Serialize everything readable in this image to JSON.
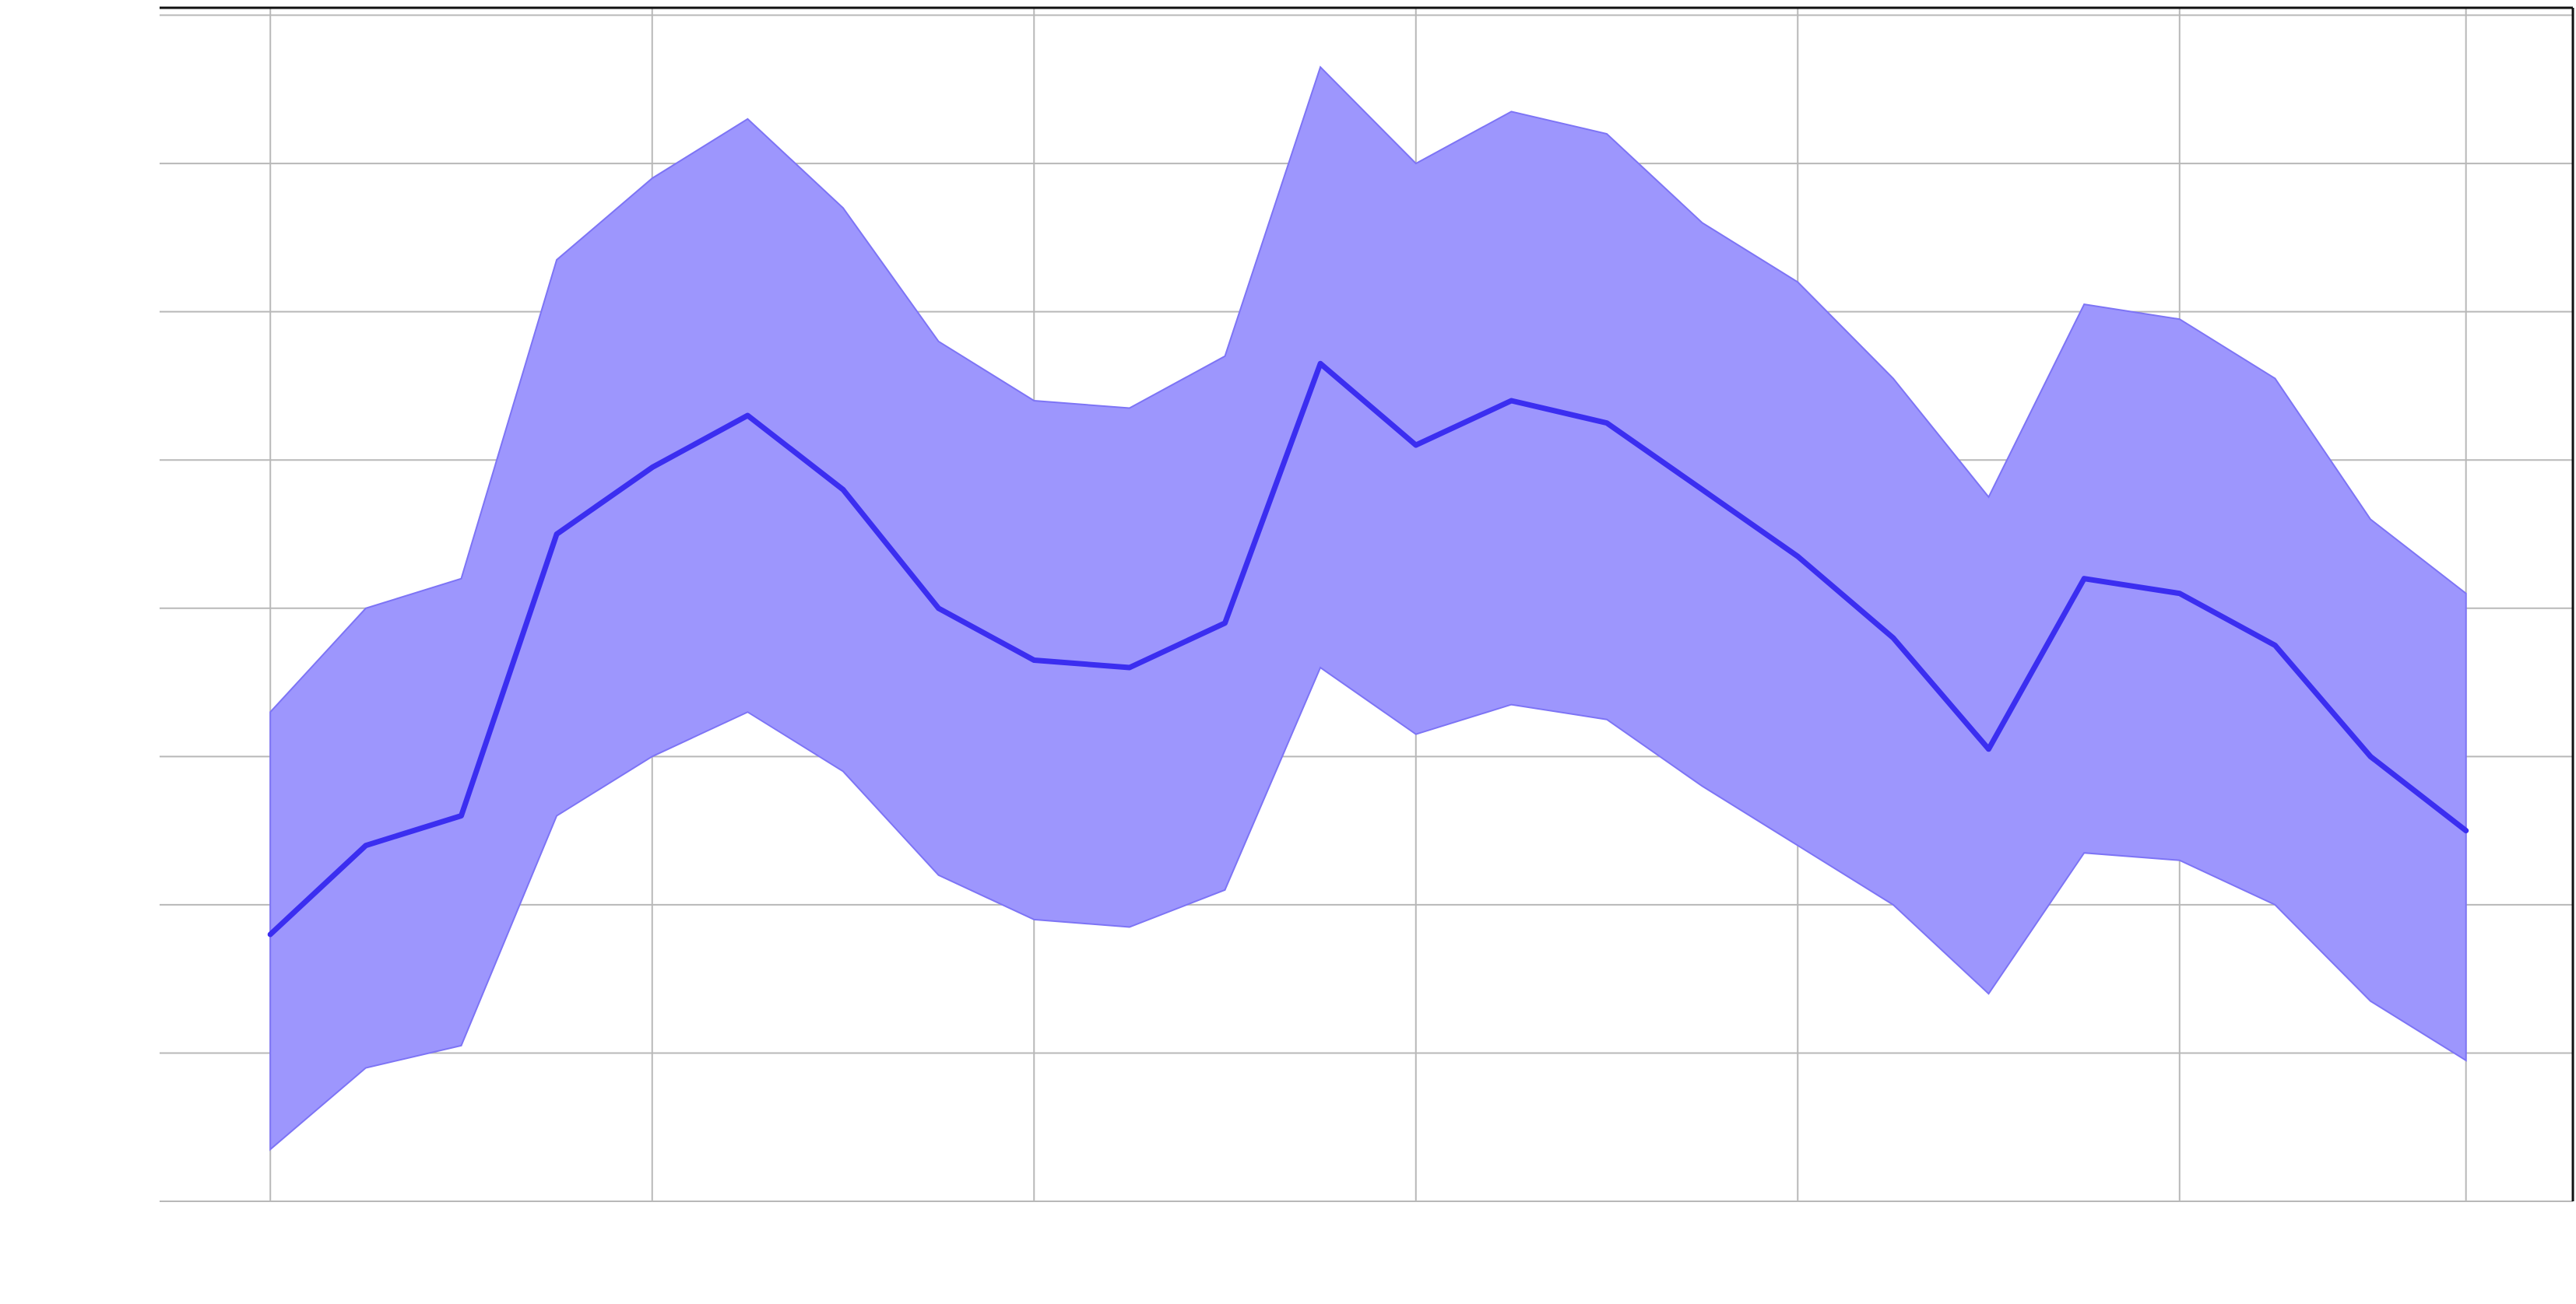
{
  "colors": {
    "band_fill": "#9d96fd",
    "band_edge": "#7d74f5",
    "line": "#3b2ef0",
    "grid": "#b8b8b8",
    "frame": "#111111",
    "background": "#ffffff"
  },
  "chart_data": {
    "type": "area",
    "title": "",
    "xlabel": "",
    "ylabel": "",
    "x": [
      0,
      0.25,
      0.5,
      0.75,
      1,
      1.25,
      1.5,
      1.75,
      2,
      2.25,
      2.5,
      2.75,
      3,
      3.25,
      3.5,
      3.75,
      4,
      4.25,
      4.5,
      4.75,
      5,
      5.25,
      5.5,
      5.75
    ],
    "xlim": [
      -0.29,
      6.03
    ],
    "ylim": [
      0,
      8.05
    ],
    "x_gridlines": [
      0,
      1,
      2,
      3,
      4,
      5,
      5.75
    ],
    "y_gridlines": [
      0,
      1,
      2,
      3,
      4,
      5,
      6,
      7,
      8
    ],
    "grid": true,
    "legend": "none",
    "series": [
      {
        "role": "mean",
        "values": [
          1.8,
          2.4,
          2.6,
          4.5,
          4.95,
          5.3,
          4.8,
          4.0,
          3.65,
          3.6,
          3.9,
          5.65,
          5.1,
          5.4,
          5.25,
          4.8,
          4.35,
          3.8,
          3.05,
          4.2,
          4.1,
          3.75,
          3.0,
          2.5
        ]
      },
      {
        "role": "upper",
        "values": [
          3.3,
          4.0,
          4.2,
          6.35,
          6.9,
          7.3,
          6.7,
          5.8,
          5.4,
          5.35,
          5.7,
          7.65,
          7.0,
          7.35,
          7.2,
          6.6,
          6.2,
          5.55,
          4.75,
          6.05,
          5.95,
          5.55,
          4.6,
          4.1
        ]
      },
      {
        "role": "lower",
        "values": [
          0.35,
          0.9,
          1.05,
          2.6,
          3.0,
          3.3,
          2.9,
          2.2,
          1.9,
          1.85,
          2.1,
          3.6,
          3.15,
          3.35,
          3.25,
          2.8,
          2.4,
          2.0,
          1.4,
          2.35,
          2.3,
          2.0,
          1.35,
          0.95
        ]
      }
    ]
  }
}
